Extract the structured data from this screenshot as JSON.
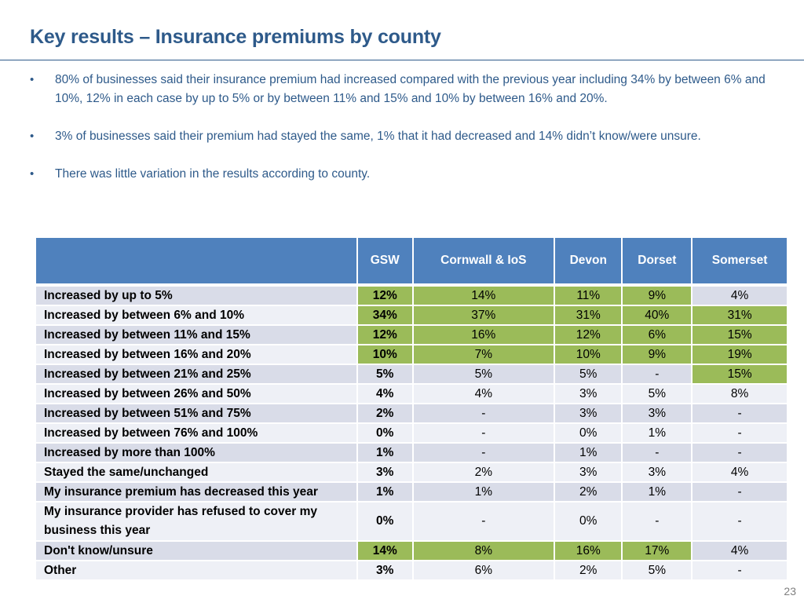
{
  "slide": {
    "title": "Key results – Insurance premiums by county",
    "bullet_marker": "•",
    "bullets": [
      "80% of businesses said their insurance premium had increased compared with the previous year including 34% by between 6% and 10%, 12% in each case by up to 5% or by between 11% and 15% and 10% by between 16% and 20%.",
      "3% of businesses said their premium had stayed the same, 1% that it had decreased and 14% didn’t know/were unsure.",
      "There was little variation in the results according to county."
    ],
    "page_number": "23"
  },
  "table": {
    "columns": [
      "GSW",
      "Cornwall & IoS",
      "Devon",
      "Dorset",
      "Somerset"
    ],
    "highlight_color": "#9bbb59",
    "header_color": "#4f81bd",
    "rows": [
      {
        "label": "Increased by up to 5%",
        "values": [
          "12%",
          "14%",
          "11%",
          "9%",
          "4%"
        ],
        "highlight": [
          true,
          true,
          true,
          true,
          false
        ]
      },
      {
        "label": "Increased by between 6% and 10%",
        "values": [
          "34%",
          "37%",
          "31%",
          "40%",
          "31%"
        ],
        "highlight": [
          true,
          true,
          true,
          true,
          true
        ]
      },
      {
        "label": "Increased by between 11% and 15%",
        "values": [
          "12%",
          "16%",
          "12%",
          "6%",
          "15%"
        ],
        "highlight": [
          true,
          true,
          true,
          true,
          true
        ]
      },
      {
        "label": "Increased by between 16% and 20%",
        "values": [
          "10%",
          "7%",
          "10%",
          "9%",
          "19%"
        ],
        "highlight": [
          true,
          true,
          true,
          true,
          true
        ]
      },
      {
        "label": "Increased by between 21% and 25%",
        "values": [
          "5%",
          "5%",
          "5%",
          "-",
          "15%"
        ],
        "highlight": [
          false,
          false,
          false,
          false,
          true
        ]
      },
      {
        "label": "Increased by between 26% and 50%",
        "values": [
          "4%",
          "4%",
          "3%",
          "5%",
          "8%"
        ],
        "highlight": [
          false,
          false,
          false,
          false,
          false
        ]
      },
      {
        "label": "Increased by between 51% and 75%",
        "values": [
          "2%",
          "-",
          "3%",
          "3%",
          "-"
        ],
        "highlight": [
          false,
          false,
          false,
          false,
          false
        ]
      },
      {
        "label": "Increased by between 76% and 100%",
        "values": [
          "0%",
          "-",
          "0%",
          "1%",
          "-"
        ],
        "highlight": [
          false,
          false,
          false,
          false,
          false
        ]
      },
      {
        "label": "Increased by more than 100%",
        "values": [
          "1%",
          "-",
          "1%",
          "-",
          "-"
        ],
        "highlight": [
          false,
          false,
          false,
          false,
          false
        ]
      },
      {
        "label": "Stayed the same/unchanged",
        "values": [
          "3%",
          "2%",
          "3%",
          "3%",
          "4%"
        ],
        "highlight": [
          false,
          false,
          false,
          false,
          false
        ]
      },
      {
        "label": "My insurance premium has decreased this year",
        "values": [
          "1%",
          "1%",
          "2%",
          "1%",
          "-"
        ],
        "highlight": [
          false,
          false,
          false,
          false,
          false
        ]
      },
      {
        "label": "My insurance provider has refused to cover my business this year",
        "values": [
          "0%",
          "-",
          "0%",
          "-",
          "-"
        ],
        "highlight": [
          false,
          false,
          false,
          false,
          false
        ]
      },
      {
        "label": "Don't know/unsure",
        "values": [
          "14%",
          "8%",
          "16%",
          "17%",
          "4%"
        ],
        "highlight": [
          true,
          true,
          true,
          true,
          false
        ]
      },
      {
        "label": "Other",
        "values": [
          "3%",
          "6%",
          "2%",
          "5%",
          "-"
        ],
        "highlight": [
          false,
          false,
          false,
          false,
          false
        ]
      }
    ]
  }
}
